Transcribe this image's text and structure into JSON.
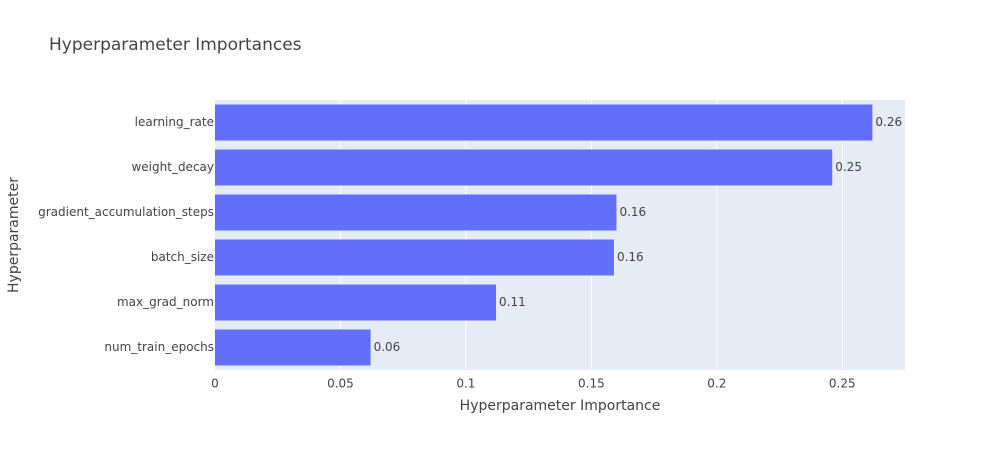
{
  "chart_data": {
    "type": "bar",
    "orientation": "horizontal",
    "title": "Hyperparameter Importances",
    "xlabel": "Hyperparameter Importance",
    "ylabel": "Hyperparameter",
    "xlim": [
      0,
      0.275
    ],
    "xticks": [
      0,
      0.05,
      0.1,
      0.15,
      0.2,
      0.25
    ],
    "xtick_labels": [
      "0",
      "0.05",
      "0.1",
      "0.15",
      "0.2",
      "0.25"
    ],
    "grid": true,
    "categories": [
      "learning_rate",
      "weight_decay",
      "gradient_accumulation_steps",
      "batch_size",
      "max_grad_norm",
      "num_train_epochs"
    ],
    "values": [
      0.262,
      0.246,
      0.16,
      0.159,
      0.112,
      0.062
    ],
    "value_labels": [
      "0.26",
      "0.25",
      "0.16",
      "0.16",
      "0.11",
      "0.06"
    ],
    "colors": {
      "bar": "#636efa",
      "plot_bg": "#e5ecf6",
      "grid": "#ffffff",
      "text": "#444444",
      "title": "#444444"
    }
  }
}
